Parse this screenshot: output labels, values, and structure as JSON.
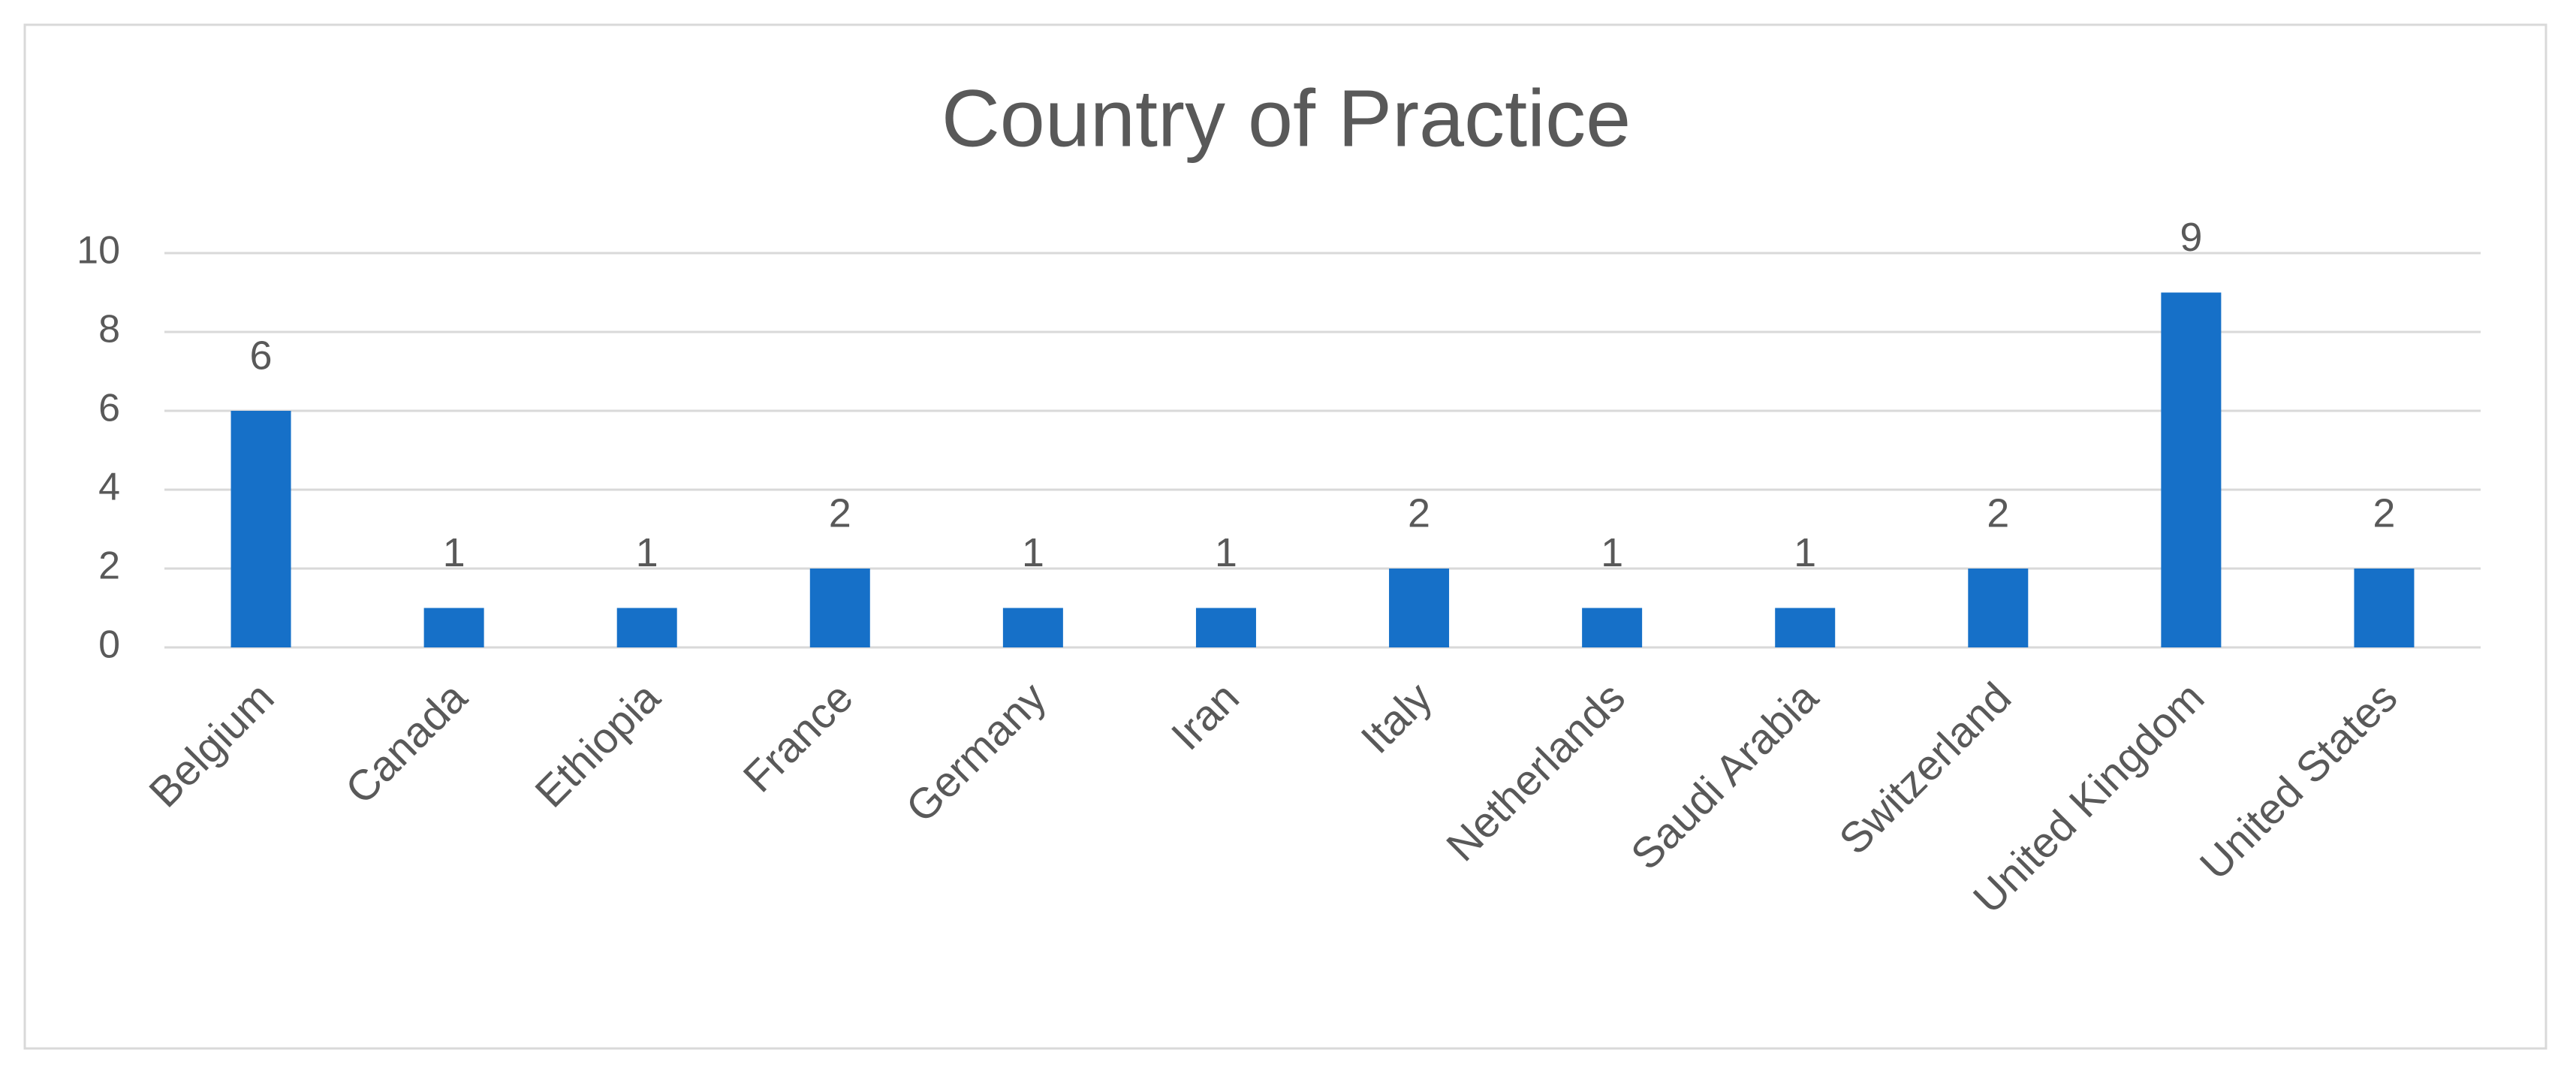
{
  "chart_data": {
    "type": "bar",
    "title": "Country of Practice",
    "categories": [
      "Belgium",
      "Canada",
      "Ethiopia",
      "France",
      "Germany",
      "Iran",
      "Italy",
      "Netherlands",
      "Saudi Arabia",
      "Switzerland",
      "United Kingdom",
      "United States"
    ],
    "values": [
      6,
      1,
      1,
      2,
      1,
      1,
      2,
      1,
      1,
      2,
      9,
      2
    ],
    "color": "#1670c8",
    "ylim": [
      0,
      10
    ],
    "yticks": [
      0,
      2,
      4,
      6,
      8,
      10
    ],
    "grid": true
  }
}
